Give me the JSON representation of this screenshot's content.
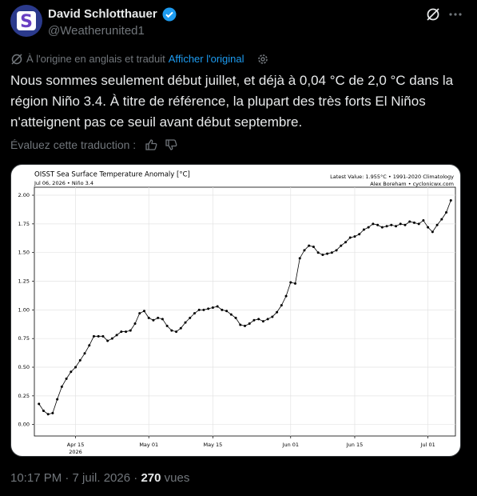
{
  "author": {
    "name": "David Schlotthauer",
    "handle": "@Weatherunited1"
  },
  "translation": {
    "note": "À l'origine en anglais et traduit",
    "show_original": "Afficher l'original"
  },
  "text": "Nous sommes seulement début juillet, et déjà à 0,04 °C de 2,0 °C dans la région Niño 3.4. À titre de référence, la plupart des très forts El Niños n'atteignent pas ce seuil avant début septembre.",
  "rate_translation": "Évaluez cette traduction :",
  "footer": {
    "time_date": "10:17 PM · 7 juil. 2026 ·",
    "views": "270",
    "views_label": "vues"
  },
  "chart_data": {
    "type": "line",
    "title": "OISST Sea Surface Temperature Anomaly [°C]",
    "subtitle": "Jul 06, 2026 • Niño 3.4",
    "latest_value": "Latest Value: 1.955°C • 1991-2020 Climatology",
    "credit": "Alex Boreham • cyclonicwx.com",
    "color": "#000000",
    "grid": true,
    "x": [
      "2026-04-07",
      "2026-04-08",
      "2026-04-09",
      "2026-04-10",
      "2026-04-11",
      "2026-04-12",
      "2026-04-13",
      "2026-04-14",
      "2026-04-15",
      "2026-04-16",
      "2026-04-17",
      "2026-04-18",
      "2026-04-19",
      "2026-04-20",
      "2026-04-21",
      "2026-04-22",
      "2026-04-23",
      "2026-04-24",
      "2026-04-25",
      "2026-04-26",
      "2026-04-27",
      "2026-04-28",
      "2026-04-29",
      "2026-04-30",
      "2026-05-01",
      "2026-05-02",
      "2026-05-03",
      "2026-05-04",
      "2026-05-05",
      "2026-05-06",
      "2026-05-07",
      "2026-05-08",
      "2026-05-09",
      "2026-05-10",
      "2026-05-11",
      "2026-05-12",
      "2026-05-13",
      "2026-05-14",
      "2026-05-15",
      "2026-05-16",
      "2026-05-17",
      "2026-05-18",
      "2026-05-19",
      "2026-05-20",
      "2026-05-21",
      "2026-05-22",
      "2026-05-23",
      "2026-05-24",
      "2026-05-25",
      "2026-05-26",
      "2026-05-27",
      "2026-05-28",
      "2026-05-29",
      "2026-05-30",
      "2026-05-31",
      "2026-06-01",
      "2026-06-02",
      "2026-06-03",
      "2026-06-04",
      "2026-06-05",
      "2026-06-06",
      "2026-06-07",
      "2026-06-08",
      "2026-06-09",
      "2026-06-10",
      "2026-06-11",
      "2026-06-12",
      "2026-06-13",
      "2026-06-14",
      "2026-06-15",
      "2026-06-16",
      "2026-06-17",
      "2026-06-18",
      "2026-06-19",
      "2026-06-20",
      "2026-06-21",
      "2026-06-22",
      "2026-06-23",
      "2026-06-24",
      "2026-06-25",
      "2026-06-26",
      "2026-06-27",
      "2026-06-28",
      "2026-06-29",
      "2026-06-30",
      "2026-07-01",
      "2026-07-02",
      "2026-07-03",
      "2026-07-04",
      "2026-07-05",
      "2026-07-06"
    ],
    "values": [
      0.18,
      0.12,
      0.09,
      0.1,
      0.22,
      0.33,
      0.4,
      0.46,
      0.5,
      0.56,
      0.62,
      0.69,
      0.77,
      0.77,
      0.77,
      0.73,
      0.75,
      0.78,
      0.81,
      0.81,
      0.82,
      0.88,
      0.97,
      0.99,
      0.93,
      0.91,
      0.93,
      0.92,
      0.86,
      0.82,
      0.81,
      0.84,
      0.89,
      0.93,
      0.97,
      1.0,
      1.0,
      1.01,
      1.02,
      1.03,
      1.0,
      0.99,
      0.96,
      0.93,
      0.87,
      0.86,
      0.88,
      0.91,
      0.92,
      0.9,
      0.92,
      0.94,
      0.98,
      1.04,
      1.12,
      1.24,
      1.23,
      1.45,
      1.52,
      1.56,
      1.55,
      1.5,
      1.48,
      1.49,
      1.5,
      1.52,
      1.56,
      1.59,
      1.63,
      1.64,
      1.66,
      1.7,
      1.72,
      1.75,
      1.74,
      1.72,
      1.73,
      1.74,
      1.73,
      1.75,
      1.74,
      1.77,
      1.76,
      1.75,
      1.78,
      1.72,
      1.68,
      1.74,
      1.79,
      1.85,
      1.955
    ],
    "xlim": [
      "2026-04-06",
      "2026-07-07"
    ],
    "xticks": [
      {
        "value": "2026-04-15",
        "label": "Apr 15",
        "sublabel": "2026"
      },
      {
        "value": "2026-05-01",
        "label": "May 01"
      },
      {
        "value": "2026-05-15",
        "label": "May 15"
      },
      {
        "value": "2026-06-01",
        "label": "Jun 01"
      },
      {
        "value": "2026-06-15",
        "label": "Jun 15"
      },
      {
        "value": "2026-07-01",
        "label": "Jul 01"
      }
    ],
    "ylim": [
      -0.1,
      2.07
    ],
    "yticks": [
      {
        "value": 0,
        "label": "0.00"
      },
      {
        "value": 0.25,
        "label": "0.25"
      },
      {
        "value": 0.5,
        "label": "0.50"
      },
      {
        "value": 0.75,
        "label": "0.75"
      },
      {
        "value": 1,
        "label": "1.00"
      },
      {
        "value": 1.25,
        "label": "1.25"
      },
      {
        "value": 1.5,
        "label": "1.50"
      },
      {
        "value": 1.75,
        "label": "1.75"
      },
      {
        "value": 2,
        "label": "2.00"
      }
    ]
  }
}
